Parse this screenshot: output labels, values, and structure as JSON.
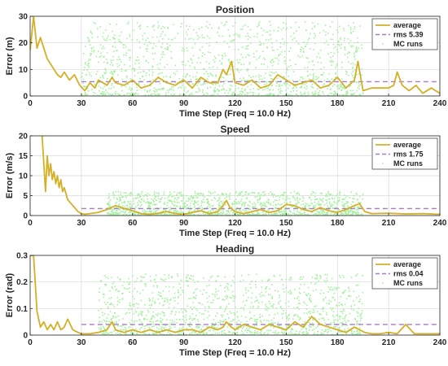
{
  "figure": {
    "background": "#ffffff"
  },
  "style": {
    "average_color": "#d4b026",
    "rms_color": "#a87cc7",
    "mc_color": "#a6f0a0",
    "grid_color": "#d9d9d9",
    "axis_color": "#262626"
  },
  "chart_data": [
    {
      "type": "line",
      "title": "Position",
      "xlabel": "Time Step (Freq = 10.0 Hz)",
      "ylabel": "Error (m)",
      "xlim": [
        0,
        240
      ],
      "ylim": [
        0,
        30
      ],
      "xticks": [
        0,
        30,
        60,
        90,
        120,
        150,
        180,
        210,
        240
      ],
      "xtick_labels": [
        "0",
        "30",
        "60",
        "90",
        "120",
        "150",
        "180",
        "210",
        "240"
      ],
      "yticks": [
        0,
        10,
        20,
        30
      ],
      "ytick_labels": [
        "0",
        "10",
        "20",
        "30"
      ],
      "grid": true,
      "legend_position": "top-right",
      "legend": [
        "average",
        "rms 5.39",
        "MC runs"
      ],
      "rms": {
        "value": 5.39,
        "x_start": 30,
        "x_end": 240
      },
      "mc_runs": {
        "x_range": [
          30,
          195
        ],
        "y_max": 28
      },
      "series": [
        {
          "name": "average",
          "x": [
            0,
            2,
            4,
            6,
            8,
            10,
            12,
            14,
            16,
            18,
            20,
            23,
            26,
            29,
            32,
            35,
            38,
            40,
            45,
            48,
            50,
            55,
            60,
            65,
            70,
            75,
            80,
            85,
            90,
            95,
            100,
            105,
            110,
            113,
            115,
            118,
            120,
            125,
            130,
            135,
            140,
            145,
            150,
            155,
            160,
            165,
            170,
            175,
            180,
            185,
            190,
            192,
            195,
            200,
            205,
            210,
            213,
            215,
            218,
            222,
            226,
            230,
            235,
            240
          ],
          "y": [
            17,
            30,
            18,
            22,
            18,
            14,
            12,
            10,
            8,
            7,
            9,
            6,
            8,
            4,
            2,
            5,
            3,
            6,
            4,
            7,
            5,
            4,
            6,
            3,
            4,
            7,
            5,
            4,
            6,
            3,
            7,
            5,
            5,
            10,
            8,
            13,
            5,
            4,
            6,
            3,
            4,
            8,
            6,
            4,
            5,
            6,
            3,
            4,
            7,
            3,
            6,
            13,
            2,
            3,
            3,
            3,
            4,
            9,
            4,
            2,
            4,
            1,
            3,
            1
          ]
        }
      ]
    },
    {
      "type": "line",
      "title": "Speed",
      "xlabel": "Time Step (Freq = 10.0 Hz)",
      "ylabel": "Error (m/s)",
      "xlim": [
        0,
        240
      ],
      "ylim": [
        0,
        20
      ],
      "xticks": [
        0,
        30,
        60,
        90,
        120,
        150,
        180,
        210,
        240
      ],
      "xtick_labels": [
        "0",
        "30",
        "60",
        "90",
        "120",
        "150",
        "180",
        "210",
        "240"
      ],
      "yticks": [
        0,
        5,
        10,
        15,
        20
      ],
      "ytick_labels": [
        "0",
        "5",
        "10",
        "15",
        "20"
      ],
      "grid": true,
      "legend_position": "top-right",
      "legend": [
        "average",
        "rms 1.75",
        "MC runs"
      ],
      "rms": {
        "value": 1.75,
        "x_start": 30,
        "x_end": 240
      },
      "mc_runs": {
        "x_range": [
          45,
          195
        ],
        "y_max": 6
      },
      "series": [
        {
          "name": "average",
          "x": [
            7,
            8,
            9,
            10,
            11,
            12,
            13,
            14,
            15,
            16,
            17,
            18,
            19,
            20,
            22,
            24,
            26,
            28,
            30,
            32,
            35,
            40,
            45,
            50,
            55,
            60,
            65,
            70,
            75,
            80,
            85,
            90,
            95,
            100,
            105,
            110,
            113,
            115,
            117,
            120,
            125,
            130,
            135,
            140,
            145,
            150,
            155,
            160,
            165,
            170,
            175,
            180,
            185,
            190,
            193,
            196,
            200,
            210,
            220,
            230,
            240
          ],
          "y": [
            20,
            13,
            6,
            15,
            10,
            13,
            9,
            11,
            8,
            10,
            7,
            9,
            6,
            7,
            4,
            3,
            2,
            1,
            0.5,
            0.3,
            0.5,
            0.8,
            1.5,
            2.5,
            1.8,
            1.2,
            0.5,
            0.3,
            0.6,
            1,
            0.5,
            0.3,
            0.8,
            1.2,
            0.5,
            1,
            2.5,
            3.8,
            2,
            1,
            0.5,
            1,
            1.5,
            0.8,
            1.2,
            2.8,
            2.5,
            1.5,
            1,
            2,
            1.2,
            0.8,
            1.5,
            2.5,
            3,
            1,
            0.5,
            0.6,
            0.4,
            0.5,
            0.3
          ]
        }
      ]
    },
    {
      "type": "line",
      "title": "Heading",
      "xlabel": "Time Step (Freq = 10.0 Hz)",
      "ylabel": "Error (rad)",
      "xlim": [
        0,
        240
      ],
      "ylim": [
        0,
        0.3
      ],
      "xticks": [
        0,
        30,
        60,
        90,
        120,
        150,
        180,
        210,
        240
      ],
      "xtick_labels": [
        "0",
        "30",
        "60",
        "90",
        "120",
        "150",
        "180",
        "210",
        "240"
      ],
      "yticks": [
        0,
        0.1,
        0.2,
        0.3
      ],
      "ytick_labels": [
        "0",
        "0.1",
        "0.2",
        "0.3"
      ],
      "grid": true,
      "legend_position": "top-right",
      "legend": [
        "average",
        "rms 0.04",
        "MC runs"
      ],
      "rms": {
        "value": 0.04,
        "x_start": 30,
        "x_end": 240
      },
      "mc_runs": {
        "x_range": [
          40,
          195
        ],
        "y_max": 0.23
      },
      "series": [
        {
          "name": "average",
          "x": [
            0,
            2,
            4,
            6,
            8,
            10,
            12,
            14,
            16,
            18,
            20,
            22,
            25,
            28,
            30,
            35,
            40,
            45,
            48,
            50,
            55,
            60,
            65,
            70,
            75,
            80,
            85,
            90,
            95,
            100,
            105,
            110,
            113,
            115,
            118,
            120,
            125,
            130,
            135,
            140,
            145,
            150,
            155,
            160,
            165,
            170,
            175,
            180,
            185,
            190,
            193,
            196,
            200,
            205,
            210,
            215,
            220,
            225,
            230,
            235,
            240
          ],
          "y": [
            0.3,
            0.3,
            0.09,
            0.03,
            0.05,
            0.02,
            0.04,
            0.02,
            0.05,
            0.02,
            0.03,
            0.06,
            0.02,
            0.01,
            0.005,
            0.005,
            0.01,
            0.02,
            0.05,
            0.02,
            0.01,
            0.02,
            0.01,
            0.02,
            0.01,
            0.02,
            0.01,
            0.02,
            0.02,
            0.01,
            0.03,
            0.02,
            0.03,
            0.05,
            0.03,
            0.02,
            0.04,
            0.03,
            0.02,
            0.04,
            0.03,
            0.02,
            0.05,
            0.03,
            0.07,
            0.04,
            0.03,
            0.02,
            0.01,
            0.03,
            0.02,
            0.01,
            0.005,
            0.005,
            0.01,
            0.005,
            0.04,
            0.005,
            0.005,
            0.005,
            0.005
          ]
        }
      ]
    }
  ]
}
